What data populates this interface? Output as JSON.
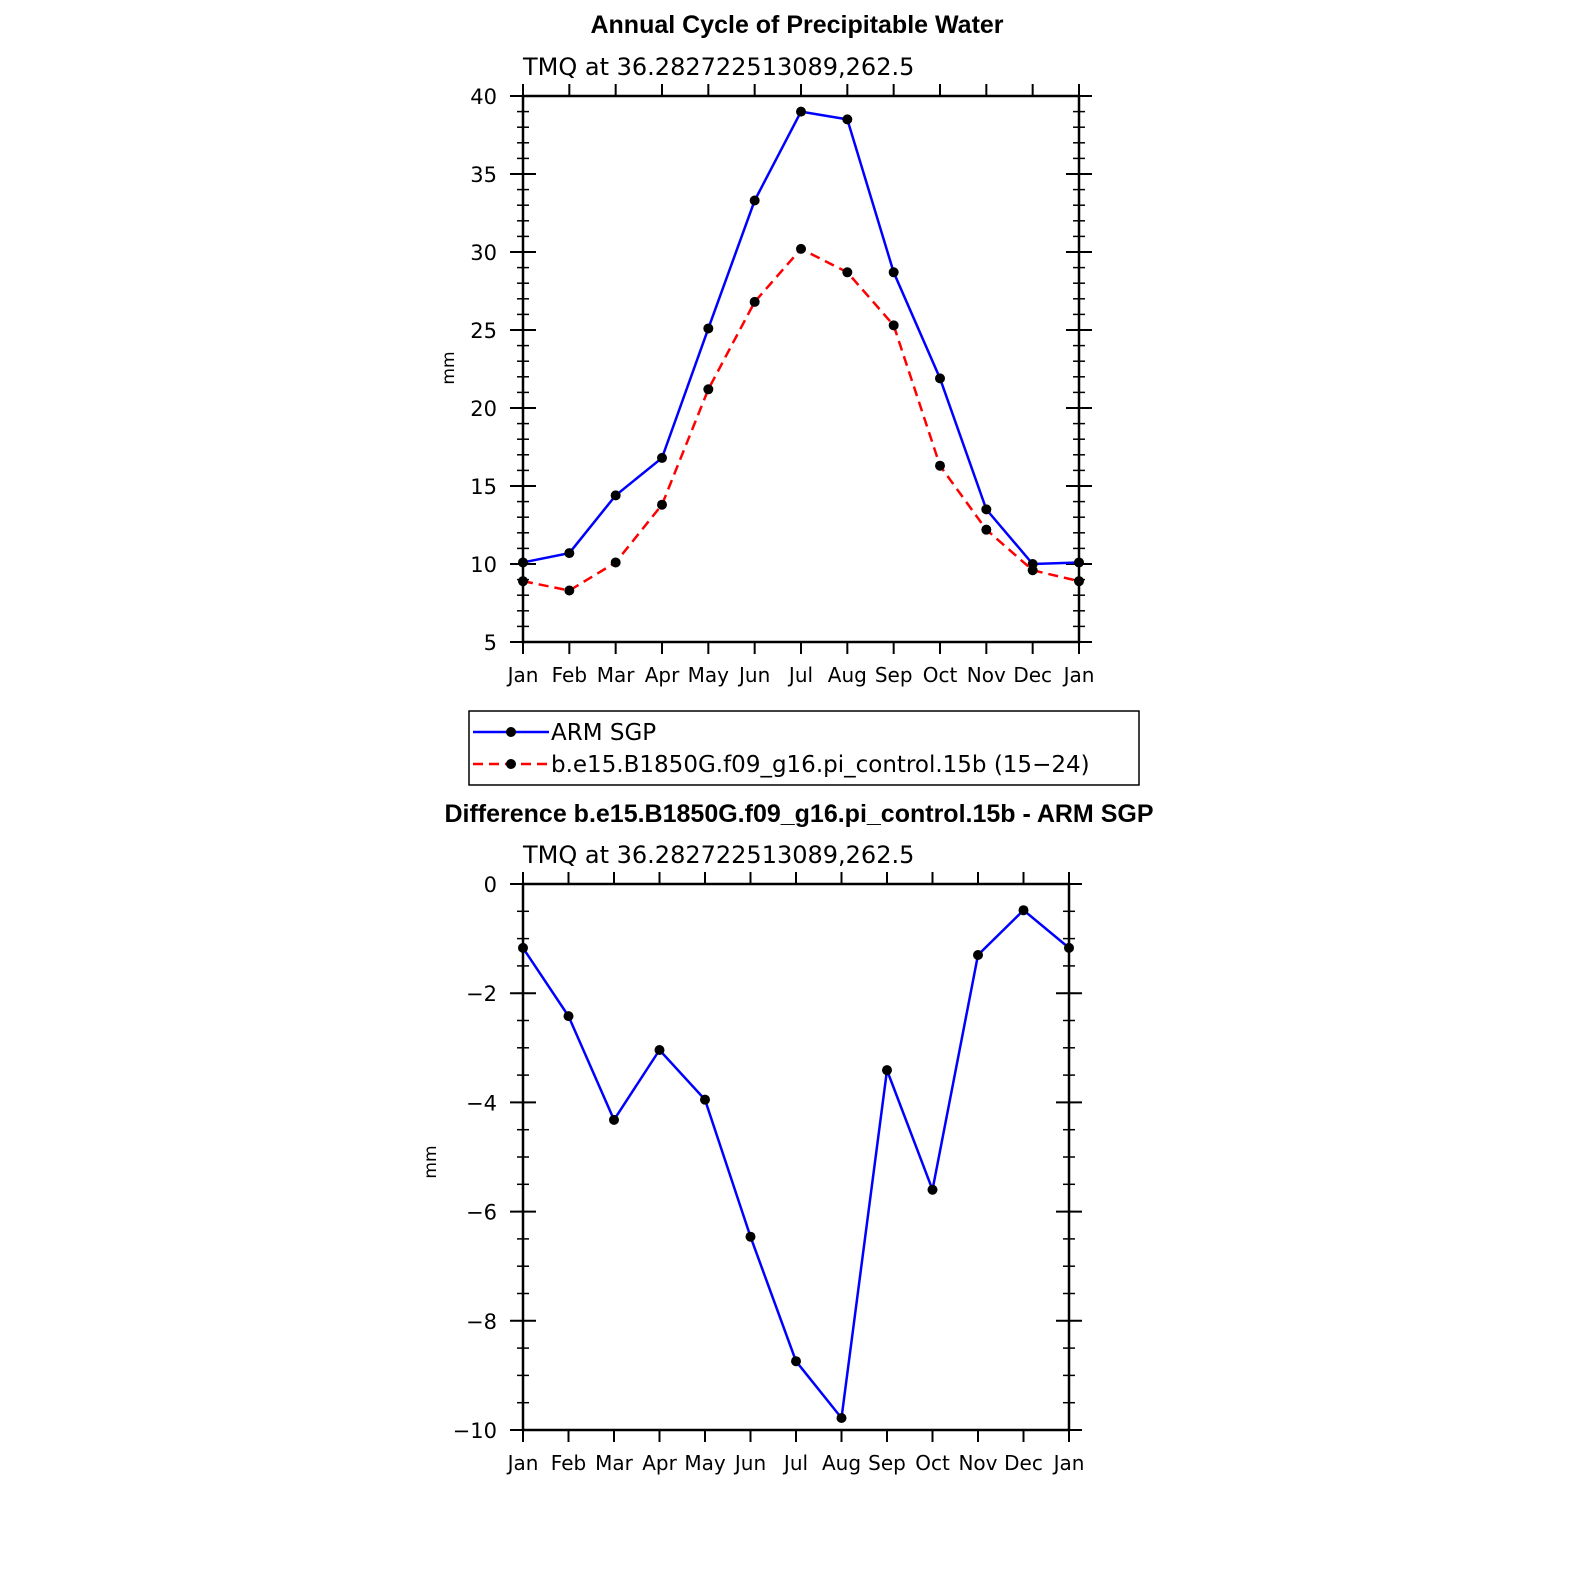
{
  "chart_data": [
    {
      "type": "line",
      "title": "Annual Cycle of Precipitable Water",
      "subtitle": "TMQ at 36.282722513089,262.5",
      "xlabel": "",
      "ylabel": "mm",
      "categories": [
        "Jan",
        "Feb",
        "Mar",
        "Apr",
        "May",
        "Jun",
        "Jul",
        "Aug",
        "Sep",
        "Oct",
        "Nov",
        "Dec",
        "Jan"
      ],
      "ylim": [
        5,
        40
      ],
      "yticks": [
        "5",
        "10",
        "15",
        "20",
        "25",
        "30",
        "35",
        "40"
      ],
      "grid": false,
      "legend_position": "below",
      "series": [
        {
          "name": "ARM SGP",
          "color": "#0000ff",
          "dashed": false,
          "values": [
            10.1,
            10.7,
            14.4,
            16.8,
            25.1,
            33.3,
            39.0,
            38.5,
            28.7,
            21.9,
            13.5,
            10.0,
            10.1
          ]
        },
        {
          "name": "b.e15.B1850G.f09_g16.pi_control.15b (15−24)",
          "color": "#ff0000",
          "dashed": true,
          "values": [
            8.9,
            8.3,
            10.1,
            13.8,
            21.2,
            26.8,
            30.2,
            28.7,
            25.3,
            16.3,
            12.2,
            9.6,
            8.9
          ]
        }
      ]
    },
    {
      "type": "line",
      "title": "Difference b.e15.B1850G.f09_g16.pi_control.15b - ARM SGP",
      "subtitle": "TMQ at 36.282722513089,262.5",
      "xlabel": "",
      "ylabel": "mm",
      "categories": [
        "Jan",
        "Feb",
        "Mar",
        "Apr",
        "May",
        "Jun",
        "Jul",
        "Aug",
        "Sep",
        "Oct",
        "Nov",
        "Dec",
        "Jan"
      ],
      "ylim": [
        -10,
        0
      ],
      "yticks": [
        "−10",
        "−8",
        "−6",
        "−4",
        "−2",
        "0"
      ],
      "grid": false,
      "series": [
        {
          "color": "#0000ff",
          "dashed": false,
          "values": [
            -1.17,
            -2.42,
            -4.32,
            -3.04,
            -3.95,
            -6.46,
            -8.74,
            -9.78,
            -3.41,
            -5.6,
            -1.3,
            -0.48,
            -1.17
          ]
        }
      ]
    }
  ]
}
